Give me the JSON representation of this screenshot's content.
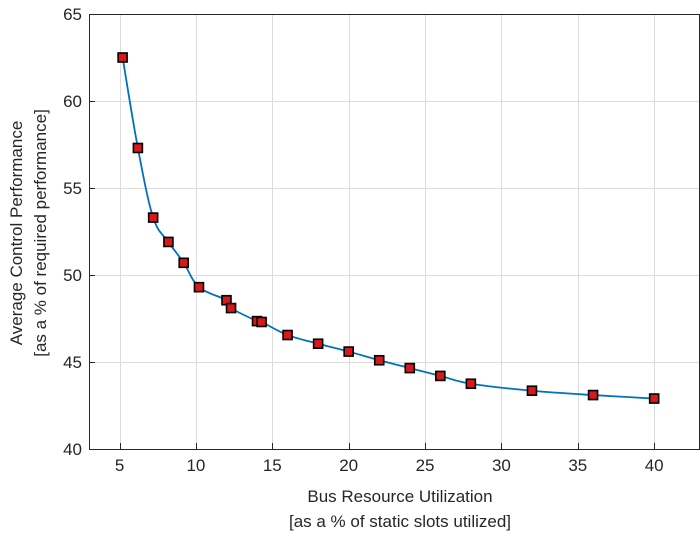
{
  "chart_data": {
    "type": "line",
    "title": "",
    "xlabel": [
      "Bus Resource Utilization",
      "[as a % of static slots utilized]"
    ],
    "ylabel": [
      "Average Control Performance",
      "[as a % of required performance]"
    ],
    "xlim": [
      3,
      43
    ],
    "ylim": [
      40,
      65
    ],
    "xticks": [
      5,
      10,
      15,
      20,
      25,
      30,
      35,
      40
    ],
    "yticks": [
      40,
      45,
      50,
      55,
      60,
      65
    ],
    "grid": true,
    "series": [
      {
        "x": [
          5.2,
          6.2,
          7.2,
          8.2,
          9.2,
          10.2,
          12.0,
          12.3,
          14.0,
          14.3,
          16.0,
          18.0,
          20.0,
          22.0,
          24.0,
          26.0,
          28.0,
          32.0,
          36.0,
          40.0
        ],
        "y": [
          62.5,
          57.3,
          53.3,
          51.9,
          50.7,
          49.3,
          48.55,
          48.1,
          47.35,
          47.3,
          46.55,
          46.05,
          45.6,
          45.1,
          44.65,
          44.2,
          43.75,
          43.35,
          43.1,
          42.9
        ],
        "line_color": "#0072bd",
        "marker": "square",
        "marker_fill": "#d7191c",
        "marker_edge": "#000000"
      }
    ]
  }
}
